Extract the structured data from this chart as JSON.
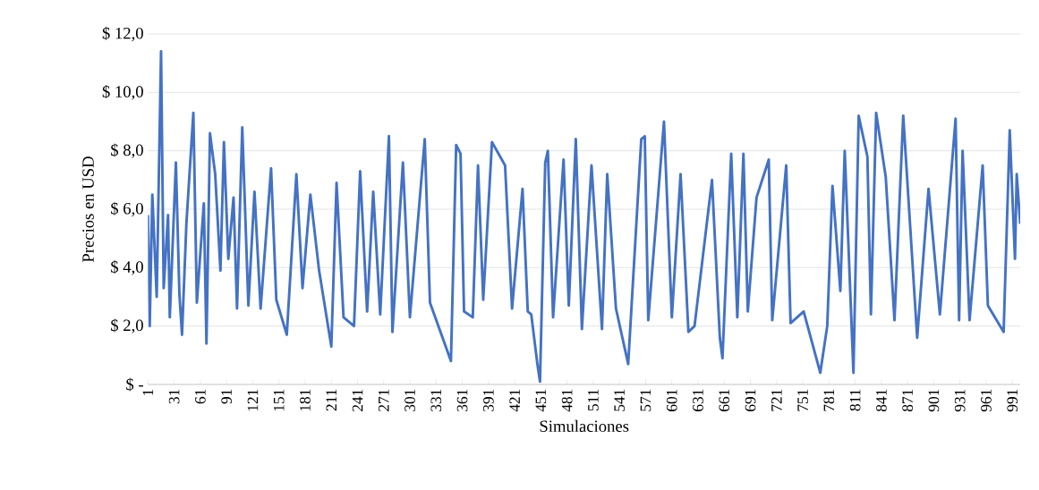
{
  "chart_data": {
    "type": "line",
    "xlabel": "Simulaciones",
    "ylabel": "Precios en USD",
    "color": "#4472c4",
    "grid": "y",
    "marker": "none",
    "line_style": "solid",
    "xlim": [
      1,
      1000
    ],
    "xticks": [
      1,
      31,
      61,
      91,
      121,
      151,
      181,
      211,
      241,
      271,
      301,
      331,
      361,
      391,
      421,
      451,
      481,
      511,
      541,
      571,
      601,
      631,
      661,
      691,
      721,
      751,
      781,
      811,
      841,
      871,
      901,
      931,
      961,
      991
    ],
    "ylim": [
      0,
      12
    ],
    "yticks": [
      {
        "value": 0,
        "label": "$ -"
      },
      {
        "value": 2,
        "label": "$ 2,0"
      },
      {
        "value": 4,
        "label": "$ 4,0"
      },
      {
        "value": 6,
        "label": "$ 6,0"
      },
      {
        "value": 8,
        "label": "$ 8,0"
      },
      {
        "value": 10,
        "label": "$ 10,0"
      },
      {
        "value": 12,
        "label": "$ 12,0"
      }
    ],
    "x": [
      1,
      3,
      6,
      11,
      16,
      19,
      24,
      26,
      33,
      37,
      40,
      45,
      53,
      57,
      65,
      68,
      72,
      78,
      84,
      88,
      93,
      99,
      103,
      109,
      116,
      123,
      130,
      142,
      148,
      160,
      171,
      178,
      187,
      197,
      211,
      217,
      225,
      237,
      244,
      252,
      259,
      267,
      277,
      281,
      293,
      301,
      318,
      324,
      348,
      354,
      359,
      363,
      373,
      379,
      385,
      395,
      410,
      418,
      430,
      436,
      440,
      447,
      450,
      456,
      459,
      465,
      477,
      483,
      491,
      498,
      509,
      521,
      527,
      537,
      551,
      566,
      570,
      574,
      592,
      601,
      611,
      620,
      627,
      647,
      656,
      659,
      669,
      676,
      683,
      688,
      698,
      712,
      716,
      732,
      737,
      752,
      771,
      779,
      785,
      794,
      799,
      809,
      815,
      825,
      829,
      835,
      846,
      856,
      866,
      882,
      895,
      908,
      926,
      930,
      934,
      942,
      957,
      963,
      981,
      988,
      994,
      996,
      1000
    ],
    "values": [
      5.8,
      2.0,
      6.5,
      3.0,
      11.4,
      3.3,
      5.8,
      2.3,
      7.6,
      3.1,
      1.7,
      5.5,
      9.3,
      2.8,
      6.2,
      1.4,
      8.6,
      7.2,
      3.9,
      8.3,
      4.3,
      6.4,
      2.6,
      8.8,
      2.7,
      6.6,
      2.6,
      7.4,
      2.9,
      1.7,
      7.2,
      3.3,
      6.5,
      3.9,
      1.3,
      6.9,
      2.3,
      2.0,
      7.3,
      2.5,
      6.6,
      2.4,
      8.5,
      1.8,
      7.6,
      2.3,
      8.4,
      2.8,
      0.8,
      8.2,
      7.9,
      2.5,
      2.3,
      7.5,
      2.9,
      8.3,
      7.5,
      2.6,
      6.7,
      2.5,
      2.4,
      0.7,
      0.1,
      7.6,
      8.0,
      2.3,
      7.7,
      2.7,
      8.4,
      1.9,
      7.5,
      1.9,
      7.2,
      2.6,
      0.7,
      8.4,
      8.5,
      2.2,
      9.0,
      2.3,
      7.2,
      1.8,
      2.0,
      7.0,
      1.6,
      0.9,
      7.9,
      2.3,
      7.9,
      2.5,
      6.4,
      7.7,
      2.2,
      7.5,
      2.1,
      2.5,
      0.4,
      2.0,
      6.8,
      3.2,
      8.0,
      0.4,
      9.2,
      7.8,
      2.4,
      9.3,
      7.1,
      2.2,
      9.2,
      1.6,
      6.7,
      2.4,
      9.1,
      2.2,
      8.0,
      2.2,
      7.5,
      2.7,
      1.8,
      8.7,
      4.3,
      7.2,
      5.5
    ]
  }
}
